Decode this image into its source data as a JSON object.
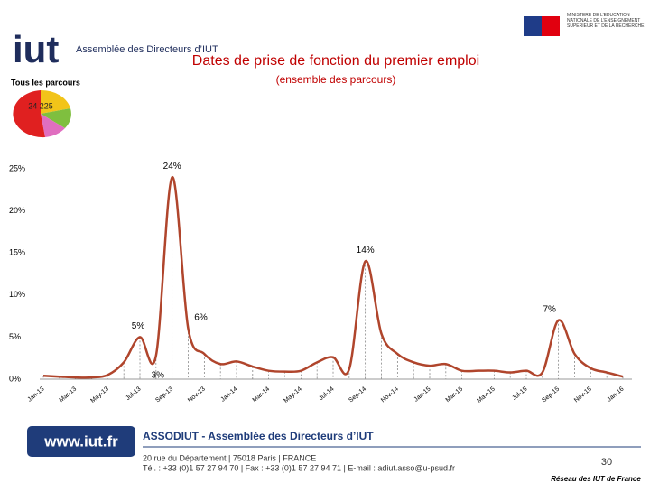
{
  "header": {
    "logo_text": "iut",
    "logo_subtitle": "Assemblée des Directeurs d’IUT",
    "scope": "Tous les parcours",
    "total": "24 225",
    "ministry": "MINISTÈRE DE L’ÉDUCATION NATIONALE DE L’ENSEIGNEMENT SUPÉRIEUR ET DE LA RECHERCHE"
  },
  "chart_data": {
    "type": "line",
    "title": "Dates de prise de fonction du premier emploi",
    "subtitle": "(ensemble des parcours)",
    "categories": [
      "Jan-13",
      null,
      "Mar-13",
      null,
      "May-13",
      null,
      "Jul-13",
      null,
      "Sep-13",
      null,
      "Nov-13",
      null,
      "Jan-14",
      null,
      "Mar-14",
      null,
      "May-14",
      null,
      "Jul-14",
      null,
      "Sep-14",
      null,
      "Nov-14",
      null,
      "Jan-15",
      null,
      "Mar-15",
      null,
      "May-15",
      null,
      "Jul-15",
      null,
      "Sep-15",
      null,
      "Nov-15",
      null,
      "Jan-16"
    ],
    "series": [
      {
        "name": "Tous les parcours",
        "color": "#b0452c",
        "values": [
          0.4,
          0.3,
          0.2,
          0.2,
          0.5,
          2,
          5,
          2.8,
          24,
          6,
          3,
          1.8,
          2.1,
          1.5,
          1,
          0.9,
          1,
          2,
          2.6,
          1.2,
          14,
          5.4,
          3,
          2,
          1.6,
          1.8,
          1,
          1,
          1,
          0.8,
          1,
          0.8,
          7,
          3,
          1.3,
          0.8,
          0.3
        ],
        "value_labels": [
          null,
          null,
          null,
          null,
          null,
          null,
          "5%",
          "3%",
          "24%",
          "6%",
          null,
          null,
          null,
          null,
          null,
          null,
          null,
          null,
          null,
          null,
          "14%",
          null,
          null,
          null,
          null,
          null,
          null,
          null,
          null,
          null,
          null,
          null,
          "7%",
          null,
          null,
          null,
          null
        ]
      }
    ],
    "ylim": [
      0,
      25
    ],
    "yticks": [
      {
        "value": 0,
        "label": "0%"
      },
      {
        "value": 5,
        "label": "5%"
      },
      {
        "value": 10,
        "label": "10%"
      },
      {
        "value": 15,
        "label": "15%"
      },
      {
        "value": 20,
        "label": "20%"
      },
      {
        "value": 25,
        "label": "25%"
      }
    ],
    "grid": false
  },
  "footer": {
    "url": "www.iut.fr",
    "org": "ASSODIUT - Assemblée des Directeurs d’IUT",
    "address": "20 rue du Département | 75018 Paris | FRANCE",
    "contact": "Tél. : +33 (0)1 57 27 94 70 | Fax : +33 (0)1 57 27 94 71 | E-mail : adiut.asso@u-psud.fr",
    "page": "30",
    "network": "Réseau des IUT de France"
  }
}
